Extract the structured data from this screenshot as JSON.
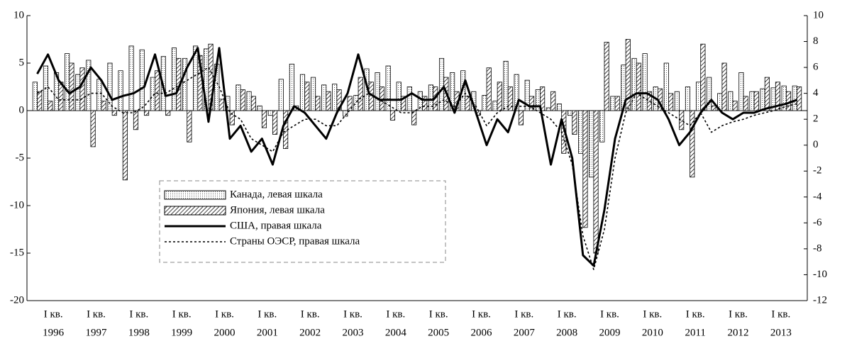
{
  "chart_data": {
    "type": "bar_line",
    "x_sublabel": "I кв.",
    "categories": [
      "1996",
      null,
      null,
      null,
      "1997",
      null,
      null,
      null,
      "1998",
      null,
      null,
      null,
      "1999",
      null,
      null,
      null,
      "2000",
      null,
      null,
      null,
      "2001",
      null,
      null,
      null,
      "2002",
      null,
      null,
      null,
      "2003",
      null,
      null,
      null,
      "2004",
      null,
      null,
      null,
      "2005",
      null,
      null,
      null,
      "2006",
      null,
      null,
      null,
      "2007",
      null,
      null,
      null,
      "2008",
      null,
      null,
      null,
      "2009",
      null,
      null,
      null,
      "2010",
      null,
      null,
      null,
      "2011",
      null,
      null,
      null,
      "2012",
      null,
      null,
      null,
      "2013",
      null,
      null,
      null
    ],
    "series": [
      {
        "name": "Канада, левая шкала",
        "kind": "bar",
        "pattern": "dots",
        "color": "#000000",
        "values": [
          3.0,
          4.7,
          4.0,
          6.0,
          3.8,
          5.3,
          3.3,
          5.0,
          4.2,
          6.8,
          6.4,
          3.5,
          5.7,
          6.6,
          5.5,
          6.8,
          6.5,
          4.9,
          1.5,
          2.7,
          2.0,
          0.5,
          -0.5,
          3.3,
          4.9,
          3.8,
          3.5,
          2.7,
          2.8,
          -0.6,
          1.6,
          4.4,
          4.0,
          4.7,
          3.0,
          2.5,
          2.0,
          2.7,
          5.5,
          4.0,
          4.2,
          2.0,
          1.6,
          1.0,
          5.2,
          3.8,
          3.2,
          2.2,
          0.3,
          0.7,
          -0.5,
          -4.5,
          -7.0,
          -3.3,
          1.5,
          4.8,
          5.5,
          6.0,
          2.5,
          5.0,
          2.0,
          2.5,
          3.0,
          3.5,
          1.8,
          2.0,
          4.0,
          2.0,
          2.3,
          2.4,
          2.6,
          2.6
        ]
      },
      {
        "name": "Япония, левая шкала",
        "kind": "bar",
        "pattern": "hatch",
        "color": "#000000",
        "values": [
          2.0,
          1.0,
          3.0,
          5.0,
          4.5,
          -3.8,
          1.0,
          -0.5,
          -7.3,
          -2.0,
          -0.5,
          4.2,
          -0.5,
          5.5,
          -3.3,
          5.8,
          7.0,
          1.2,
          -1.5,
          2.2,
          1.5,
          -1.8,
          -2.5,
          -4.0,
          0.5,
          3.0,
          1.5,
          2.0,
          2.2,
          1.5,
          3.5,
          3.0,
          2.5,
          -1.0,
          1.5,
          -1.5,
          1.5,
          2.5,
          3.5,
          2.0,
          1.5,
          -0.5,
          4.5,
          3.0,
          2.5,
          -1.5,
          1.5,
          2.5,
          2.0,
          -4.5,
          -2.5,
          -12.3,
          -15.0,
          7.2,
          1.5,
          7.5,
          5.0,
          2.0,
          2.3,
          1.8,
          -2.0,
          -7.0,
          7.0,
          0.5,
          5.0,
          1.0,
          1.5,
          2.0,
          3.5,
          3.0,
          2.0,
          2.5
        ]
      },
      {
        "name": "США, правая шкала",
        "kind": "line",
        "axis": "y2",
        "dash": "solid",
        "color": "#000000",
        "values": [
          5.5,
          7.0,
          5.0,
          4.0,
          4.5,
          6.0,
          5.0,
          3.5,
          3.8,
          4.0,
          4.5,
          7.0,
          3.8,
          4.0,
          6.0,
          7.5,
          1.8,
          7.5,
          0.5,
          1.5,
          -0.5,
          0.5,
          -1.5,
          1.5,
          3.0,
          2.5,
          1.5,
          0.5,
          2.5,
          4.0,
          7.0,
          4.0,
          3.5,
          3.5,
          3.5,
          4.0,
          3.5,
          3.5,
          4.5,
          2.5,
          5.0,
          2.5,
          0.0,
          2.0,
          1.0,
          3.5,
          3.0,
          3.0,
          -1.5,
          2.0,
          -1.0,
          -8.5,
          -9.3,
          -5.0,
          0.5,
          3.5,
          4.0,
          4.0,
          3.5,
          2.0,
          0.0,
          1.0,
          2.5,
          3.5,
          2.5,
          2.0,
          2.5,
          2.5,
          2.8,
          3.0,
          3.2,
          3.5
        ]
      },
      {
        "name": "Страны ОЭСР, правая шкала",
        "kind": "line",
        "axis": "y2",
        "dash": "dotted",
        "color": "#000000",
        "values": [
          4.0,
          4.5,
          3.5,
          3.5,
          3.5,
          4.0,
          4.0,
          3.0,
          2.5,
          2.5,
          3.0,
          4.0,
          4.0,
          4.5,
          5.0,
          5.5,
          6.0,
          4.5,
          2.5,
          2.0,
          0.5,
          0.0,
          -0.5,
          1.0,
          1.5,
          2.0,
          2.0,
          1.5,
          1.5,
          2.5,
          3.5,
          4.0,
          3.5,
          3.0,
          2.5,
          2.5,
          3.0,
          3.0,
          3.5,
          3.0,
          4.0,
          3.0,
          1.5,
          2.5,
          3.0,
          3.0,
          3.0,
          2.5,
          2.0,
          1.0,
          -1.5,
          -7.0,
          -9.6,
          -6.5,
          -1.0,
          2.5,
          4.0,
          3.5,
          3.0,
          2.5,
          2.0,
          1.5,
          2.5,
          1.0,
          1.5,
          1.8,
          2.0,
          2.3,
          2.5,
          2.7,
          3.0,
          3.2
        ]
      }
    ],
    "ylim": [
      -20,
      10
    ],
    "yticks": [
      10,
      5,
      0,
      -5,
      -10,
      -15,
      -20
    ],
    "y2lim": [
      -12,
      10
    ],
    "y2ticks": [
      10,
      8,
      6,
      4,
      2,
      0,
      -2,
      -4,
      -6,
      -8,
      -10,
      -12
    ]
  }
}
